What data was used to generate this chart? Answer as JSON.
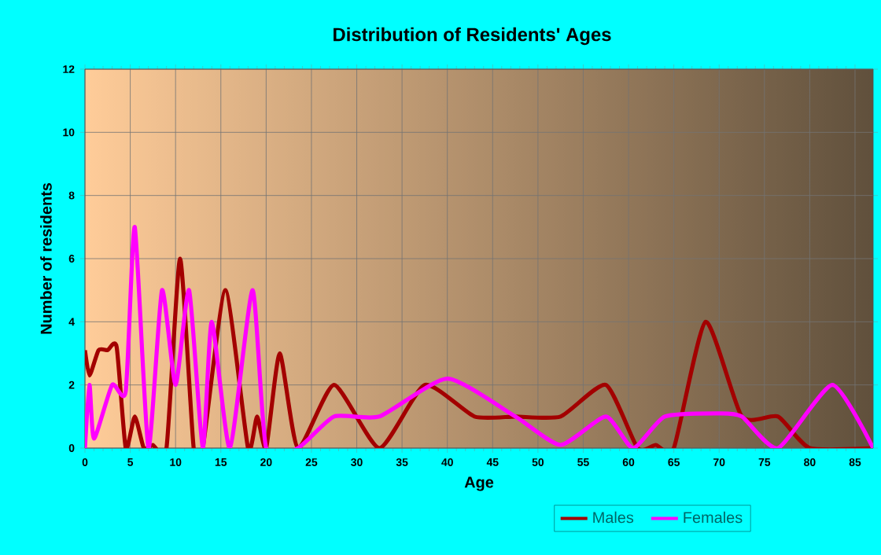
{
  "chart_data": {
    "type": "line",
    "title": "Distribution of Residents' Ages",
    "xlabel": "Age",
    "ylabel": "Number of residents",
    "xlim": [
      0,
      87
    ],
    "xticks": [
      0,
      5,
      10,
      15,
      20,
      25,
      30,
      35,
      40,
      45,
      50,
      55,
      60,
      65,
      70,
      75,
      80,
      85
    ],
    "ylim": [
      0,
      12
    ],
    "yticks": [
      0,
      2,
      4,
      6,
      8,
      10,
      12
    ],
    "grid": true,
    "legend": "bottom",
    "series": [
      {
        "name": "Males",
        "color": "#a30000",
        "x": [
          0,
          0.5,
          1.5,
          2.5,
          3.5,
          4.5,
          5.5,
          6.5,
          7.5,
          9,
          10.5,
          12,
          13,
          15.5,
          18,
          19,
          20,
          21.5,
          23.5,
          27.5,
          32.5,
          37.5,
          43,
          47.5,
          52.5,
          57.5,
          61,
          63,
          65,
          68.5,
          72.5,
          76.5,
          80,
          87
        ],
        "values": [
          3.1,
          2.3,
          3.1,
          3.1,
          3.2,
          0,
          1,
          0,
          0.1,
          0,
          6,
          0,
          0,
          5,
          0,
          1,
          0,
          3,
          0,
          2,
          0,
          2,
          1,
          1,
          1,
          2,
          0,
          0.1,
          0,
          4,
          1,
          1,
          0,
          0
        ]
      },
      {
        "name": "Females",
        "color": "#ff00ff",
        "x": [
          0,
          0.5,
          1,
          3,
          4.5,
          5.5,
          7,
          8.5,
          10,
          11.5,
          13,
          14,
          16,
          18.5,
          20,
          23.5,
          27.5,
          32.5,
          40,
          47.5,
          52.5,
          57.5,
          60.5,
          64,
          70,
          72.5,
          76.5,
          82.5,
          87
        ],
        "values": [
          0,
          2,
          0.3,
          2,
          1.8,
          7,
          0,
          5,
          2,
          5,
          0,
          4,
          0,
          5,
          0,
          0,
          1,
          1,
          2.2,
          1,
          0.1,
          1,
          0,
          1,
          1.1,
          1,
          0,
          2,
          0
        ]
      }
    ]
  }
}
